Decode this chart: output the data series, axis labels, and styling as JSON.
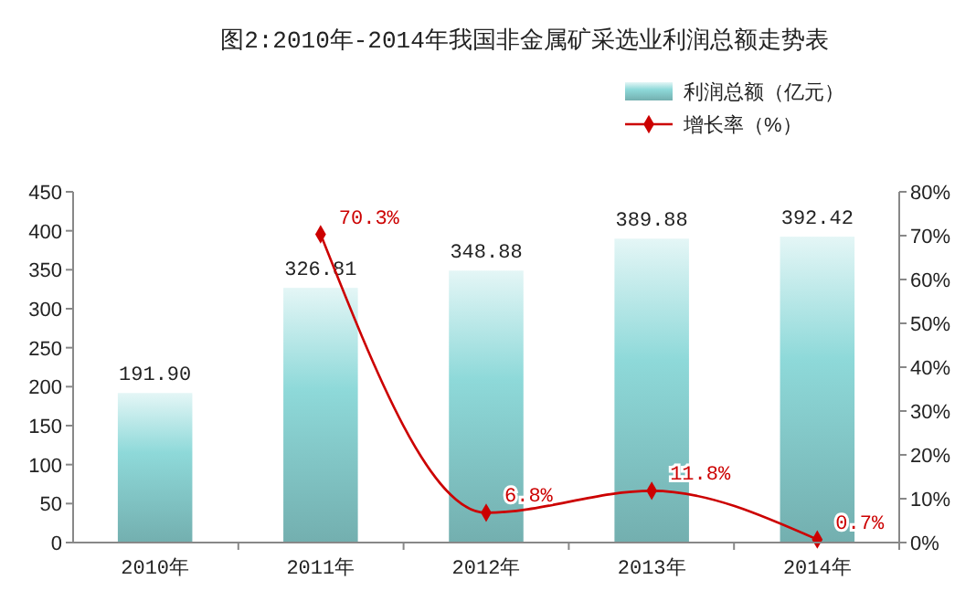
{
  "chart_data": {
    "type": "bar",
    "title": "图2:2010年-2014年我国非金属矿采选业利润总额走势表",
    "categories": [
      "2010年",
      "2011年",
      "2012年",
      "2013年",
      "2014年"
    ],
    "series": [
      {
        "name": "利润总额（亿元）",
        "color": "#8ed9d9",
        "values": [
          191.9,
          326.81,
          348.88,
          389.88,
          392.42
        ],
        "value_labels": [
          "191.90",
          "326.81",
          "348.88",
          "389.88",
          "392.42"
        ]
      },
      {
        "name": "增长率（%）",
        "type": "line",
        "axis": "y2",
        "color": "#cc0000",
        "marker": "diamond",
        "values": [
          null,
          70.3,
          6.8,
          11.8,
          0.7
        ],
        "value_labels": [
          null,
          "70.3%",
          "6.8%",
          "11.8%",
          "0.7%"
        ]
      }
    ],
    "ylim": [
      0,
      450
    ],
    "yticks": [
      0,
      50,
      100,
      150,
      200,
      250,
      300,
      350,
      400,
      450
    ],
    "y2lim": [
      0,
      80
    ],
    "y2ticks": [
      {
        "value": 0,
        "label": "0%"
      },
      {
        "value": 10,
        "label": "10%"
      },
      {
        "value": 20,
        "label": "20%"
      },
      {
        "value": 30,
        "label": "30%"
      },
      {
        "value": 40,
        "label": "40%"
      },
      {
        "value": 50,
        "label": "50%"
      },
      {
        "value": 60,
        "label": "60%"
      },
      {
        "value": 70,
        "label": "70%"
      },
      {
        "value": 80,
        "label": "80%"
      }
    ],
    "legend": "top right"
  }
}
